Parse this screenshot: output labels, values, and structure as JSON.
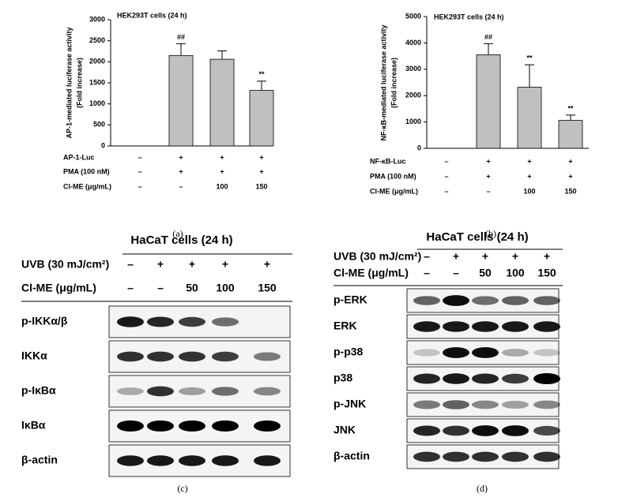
{
  "chart_data": [
    {
      "type": "bar",
      "title": "HEK293T cells (24 h)",
      "ylabel": [
        "AP-1-mediated luciferase activity",
        "(Fold increase)"
      ],
      "values": [
        0,
        2150,
        2060,
        1320
      ],
      "errors": [
        0,
        280,
        200,
        220
      ],
      "annotations": [
        null,
        "##",
        null,
        "**"
      ],
      "color": "#c0c0c0",
      "ylim": [
        0,
        3000
      ],
      "yticks": [
        0,
        500,
        1000,
        1500,
        2000,
        2500,
        3000
      ],
      "conditions": [
        {
          "label": "AP-1-Luc",
          "values": [
            "–",
            "+",
            "+",
            "+"
          ]
        },
        {
          "label": "PMA (100 nM)",
          "values": [
            "–",
            "+",
            "+",
            "+"
          ]
        },
        {
          "label": "Cl-ME (μg/mL)",
          "values": [
            "–",
            "–",
            "100",
            "150"
          ]
        }
      ]
    },
    {
      "type": "bar",
      "title": "HEK293T cells (24 h)",
      "ylabel": [
        "NF-κB-mediated luciferase activity",
        "(Fold increase)"
      ],
      "values": [
        0,
        3550,
        2320,
        1060
      ],
      "errors": [
        0,
        420,
        850,
        200
      ],
      "annotations": [
        null,
        "##",
        "**",
        "**"
      ],
      "color": "#c0c0c0",
      "ylim": [
        0,
        5000
      ],
      "yticks": [
        0,
        1000,
        2000,
        3000,
        4000,
        5000
      ],
      "conditions": [
        {
          "label": "NF-κB-Luc",
          "values": [
            "–",
            "+",
            "+",
            "+"
          ]
        },
        {
          "label": "PMA (100 nM)",
          "values": [
            "–",
            "+",
            "+",
            "+"
          ]
        },
        {
          "label": "Cl-ME (μg/mL)",
          "values": [
            "–",
            "–",
            "100",
            "150"
          ]
        }
      ]
    }
  ],
  "blots": [
    {
      "title": "HaCaT cells (24 h)",
      "treatments": [
        {
          "label": "UVB (30 mJ/cm²)",
          "values": [
            "–",
            "+",
            "+",
            "+",
            "+"
          ]
        },
        {
          "label": "Cl-ME (μg/mL)",
          "values": [
            "–",
            "–",
            "50",
            "100",
            "150"
          ]
        }
      ],
      "bands": [
        "p-IKKα/β",
        "IKKα",
        "p-IκBα",
        "IκBα",
        "β-actin"
      ]
    },
    {
      "title": "HaCaT cells (24 h)",
      "treatments": [
        {
          "label": "UVB (30 mJ/cm²)",
          "values": [
            "–",
            "+",
            "+",
            "+",
            "+"
          ]
        },
        {
          "label": "Cl-ME (μg/mL)",
          "values": [
            "–",
            "–",
            "50",
            "100",
            "150"
          ]
        }
      ],
      "bands": [
        "p-ERK",
        "ERK",
        "p-p38",
        "p38",
        "p-JNK",
        "JNK",
        "β-actin"
      ]
    }
  ],
  "panel_labels": [
    "(a)",
    "(b)",
    "(c)",
    "(d)"
  ]
}
